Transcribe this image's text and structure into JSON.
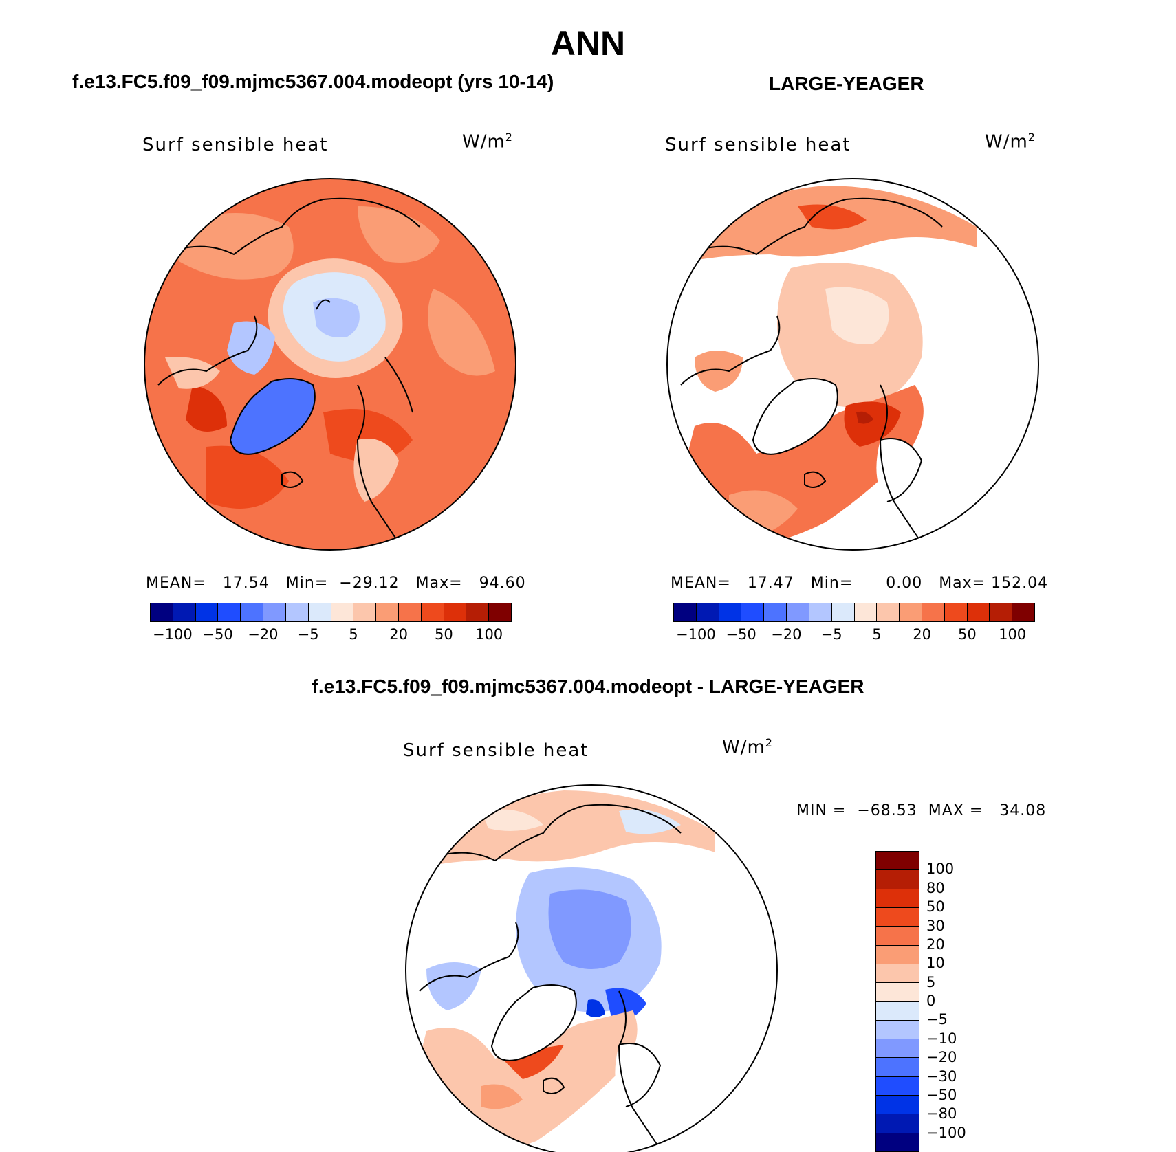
{
  "title": "ANN",
  "colors": {
    "scale": [
      "#000080",
      "#0019b3",
      "#0033e6",
      "#1f4dff",
      "#4d73ff",
      "#8099ff",
      "#b3c6ff",
      "#dbe9fb",
      "#fde6d8",
      "#fcc6ac",
      "#fa9d75",
      "#f6734a",
      "#ee4a1d",
      "#dd3009",
      "#b51e05",
      "#7f0000"
    ],
    "land_outline": "#000000",
    "no_data": "#ffffff"
  },
  "panels": [
    {
      "id": "test",
      "case_title": "f.e13.FC5.f09_f09.mjmc5367.004.modeopt (yrs 10-14)",
      "variable": "Surf  sensible  heat",
      "units": "W/m",
      "units_exp": "2",
      "stats": {
        "mean_label": "MEAN=",
        "mean": "17.54",
        "min_label": "Min=",
        "min": "−29.12",
        "max_label": "Max=",
        "max": "94.60"
      },
      "colorbar_ticks": [
        "−100",
        "−50",
        "−20",
        "−5",
        "5",
        "20",
        "50",
        "100"
      ]
    },
    {
      "id": "obs",
      "case_title": "LARGE-YEAGER",
      "variable": "Surf  sensible  heat",
      "units": "W/m",
      "units_exp": "2",
      "stats": {
        "mean_label": "MEAN=",
        "mean": "17.47",
        "min_label": "Min=",
        "min": "0.00",
        "max_label": "Max=",
        "max": "152.04"
      },
      "colorbar_ticks": [
        "−100",
        "−50",
        "−20",
        "−5",
        "5",
        "20",
        "50",
        "100"
      ]
    },
    {
      "id": "diff",
      "case_title": "f.e13.FC5.f09_f09.mjmc5367.004.modeopt - LARGE-YEAGER",
      "variable": "Surf  sensible  heat",
      "units": "W/m",
      "units_exp": "2",
      "stats": {
        "min_label": "MIN",
        "min": "−68.53",
        "max_label": "MAX",
        "max": "34.08"
      },
      "colorbar_ticks": [
        "100",
        "80",
        "50",
        "30",
        "20",
        "10",
        "5",
        "0",
        "−5",
        "−10",
        "−20",
        "−30",
        "−50",
        "−80",
        "−100"
      ]
    }
  ]
}
